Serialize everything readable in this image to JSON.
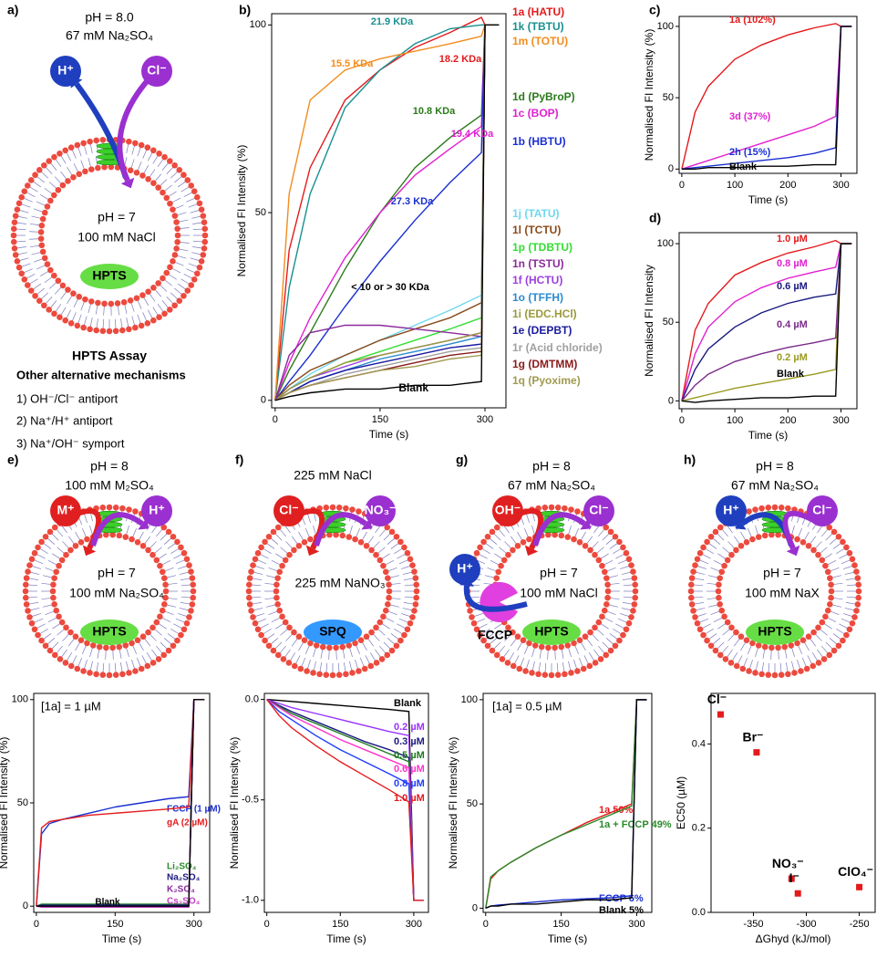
{
  "panels": {
    "a": {
      "label": "a)",
      "outside": [
        "pH = 8.0",
        "67 mM Na₂SO₄"
      ],
      "ions": [
        "H⁺",
        "Cl⁻"
      ],
      "inside": [
        "pH = 7",
        "100 mM NaCl"
      ],
      "dye": "HPTS",
      "caption": "HPTS Assay",
      "subtitle": "Other alternative mechanisms",
      "mechanisms": [
        "1) OH⁻/Cl⁻ antiport",
        "2) Na⁺/H⁺ antiport",
        "3) Na⁺/OH⁻ symport"
      ]
    },
    "e": {
      "label": "e)",
      "outside": [
        "pH = 8",
        "100 mM M₂SO₄"
      ],
      "ions": [
        "M⁺",
        "H⁺"
      ],
      "inside": [
        "pH = 7",
        "100 mM Na₂SO₄"
      ],
      "dye": "HPTS"
    },
    "f": {
      "label": "f)",
      "outside": [
        "225 mM NaCl"
      ],
      "ions": [
        "Cl⁻",
        "NO₃⁻"
      ],
      "inside": [
        "225 mM NaNO₃"
      ],
      "dye": "SPQ"
    },
    "g": {
      "label": "g)",
      "outside": [
        "pH = 8",
        "67 mM Na₂SO₄"
      ],
      "ions": [
        "OH⁻",
        "Cl⁻"
      ],
      "inside": [
        "pH = 7",
        "100 mM NaCl"
      ],
      "dye": "HPTS",
      "extra_ion": "H⁺",
      "carrier": "FCCP"
    },
    "h": {
      "label": "h)",
      "outside": [
        "pH = 8",
        "67 mM Na₂SO₄"
      ],
      "ions": [
        "H⁺",
        "Cl⁻"
      ],
      "inside": [
        "pH = 7",
        "100 mM NaX"
      ],
      "dye": "HPTS"
    }
  },
  "chart_data": [
    {
      "type": "line",
      "panel_label": "b)",
      "xlabel": "Time (s)",
      "ylabel": "Normalised FI Intensity (%)",
      "xlim": [
        -5,
        330
      ],
      "ylim": [
        -2,
        103
      ],
      "xticks": [
        0,
        150,
        300
      ],
      "yticks": [
        0,
        50,
        100
      ],
      "x": [
        0,
        20,
        50,
        100,
        150,
        200,
        250,
        295,
        300,
        320
      ],
      "series": [
        {
          "name": "1a (HATU)",
          "color": "#e41a1c",
          "values": [
            0,
            40,
            62,
            80,
            88,
            94,
            98,
            102,
            100,
            100
          ]
        },
        {
          "name": "1k (TBTU)",
          "color": "#1a9090",
          "values": [
            0,
            30,
            55,
            78,
            88,
            95,
            99,
            100,
            100,
            100
          ]
        },
        {
          "name": "1m (TOTU)",
          "color": "#f28c1e",
          "values": [
            0,
            55,
            80,
            88,
            91,
            93,
            95,
            97,
            100,
            100
          ]
        },
        {
          "name": "1d (PyBroP)",
          "color": "#2a7a1a",
          "values": [
            0,
            8,
            18,
            35,
            50,
            62,
            70,
            76,
            100,
            100
          ]
        },
        {
          "name": "1c (BOP)",
          "color": "#e020d0",
          "values": [
            0,
            10,
            22,
            38,
            50,
            60,
            67,
            73,
            100,
            100
          ]
        },
        {
          "name": "1b (HBTU)",
          "color": "#1a2fd0",
          "values": [
            0,
            5,
            12,
            25,
            37,
            48,
            58,
            66,
            100,
            100
          ]
        },
        {
          "name": "1j (TATU)",
          "color": "#70d8ee",
          "values": [
            0,
            3,
            7,
            12,
            16,
            20,
            24,
            28,
            100,
            100
          ]
        },
        {
          "name": "1l (TCTU)",
          "color": "#8a4a1a",
          "values": [
            0,
            4,
            8,
            12,
            16,
            19,
            22,
            26,
            100,
            100
          ]
        },
        {
          "name": "1p (TDBTU)",
          "color": "#33dd33",
          "values": [
            0,
            3,
            6,
            10,
            13,
            16,
            19,
            22,
            100,
            100
          ]
        },
        {
          "name": "1n (TSTU)",
          "color": "#8a2a9a",
          "values": [
            0,
            12,
            18,
            20,
            20,
            19,
            18,
            17,
            100,
            100
          ]
        },
        {
          "name": "1f (HCTU)",
          "color": "#9a40e0",
          "values": [
            0,
            3,
            6,
            9,
            12,
            14,
            16,
            18,
            100,
            100
          ]
        },
        {
          "name": "1o (TFFH)",
          "color": "#2a8ad0",
          "values": [
            0,
            2,
            5,
            8,
            11,
            13,
            15,
            17,
            100,
            100
          ]
        },
        {
          "name": "1i (EDC.HCl)",
          "color": "#9a9a3a",
          "values": [
            0,
            3,
            6,
            10,
            12,
            14,
            16,
            18,
            100,
            100
          ]
        },
        {
          "name": "1e (DEPBT)",
          "color": "#1a1aa0",
          "values": [
            0,
            2,
            5,
            8,
            10,
            12,
            14,
            15,
            100,
            100
          ]
        },
        {
          "name": "1r (Acid chloride)",
          "color": "#a0a0a0",
          "values": [
            0,
            2,
            4,
            7,
            9,
            11,
            13,
            14,
            100,
            100
          ]
        },
        {
          "name": "1g (DMTMM)",
          "color": "#8a1a1a",
          "values": [
            0,
            2,
            4,
            6,
            8,
            10,
            12,
            13,
            100,
            100
          ]
        },
        {
          "name": "1q (Pyoxime)",
          "color": "#a09a50",
          "values": [
            0,
            2,
            4,
            6,
            8,
            9,
            11,
            12,
            100,
            100
          ]
        },
        {
          "name": "Blank",
          "color": "#000000",
          "values": [
            0,
            1,
            2,
            3,
            3,
            4,
            4,
            5,
            100,
            100
          ]
        }
      ],
      "annotations": [
        {
          "text": "21.9 KDa",
          "color": "#1a9090"
        },
        {
          "text": "18.2 KDa",
          "color": "#e41a1c"
        },
        {
          "text": "15.5 KDa",
          "color": "#f28c1e"
        },
        {
          "text": "10.8 KDa",
          "color": "#2a7a1a"
        },
        {
          "text": "19.4 KDa",
          "color": "#e020d0"
        },
        {
          "text": "27.3 KDa",
          "color": "#1a2fd0"
        },
        {
          "text": "< 10 or > 30 KDa",
          "color": "#000000"
        }
      ]
    },
    {
      "type": "line",
      "panel_label": "c)",
      "xlabel": "Time (s)",
      "ylabel": "Normalised FI Intensity (%)",
      "xlim": [
        -5,
        330
      ],
      "ylim": [
        -3,
        107
      ],
      "xticks": [
        0,
        100,
        200,
        300
      ],
      "yticks": [
        0,
        50,
        100
      ],
      "x": [
        0,
        25,
        50,
        100,
        150,
        200,
        250,
        290,
        300,
        320
      ],
      "series": [
        {
          "name": "1a (102%)",
          "color": "#e41a1c",
          "values": [
            0,
            40,
            58,
            77,
            87,
            94,
            99,
            102,
            100,
            100
          ]
        },
        {
          "name": "3d (37%)",
          "color": "#e020d0",
          "values": [
            0,
            3,
            6,
            12,
            18,
            24,
            30,
            37,
            100,
            100
          ]
        },
        {
          "name": "2h (15%)",
          "color": "#1a2fd0",
          "values": [
            0,
            1,
            2,
            4,
            6,
            8,
            11,
            15,
            100,
            100
          ]
        },
        {
          "name": "Blank",
          "color": "#000000",
          "values": [
            0,
            0,
            1,
            1,
            2,
            2,
            3,
            3,
            100,
            100
          ]
        }
      ]
    },
    {
      "type": "line",
      "panel_label": "d)",
      "xlabel": "Time (s)",
      "ylabel": "Normalised FI Intensity",
      "xlim": [
        -5,
        330
      ],
      "ylim": [
        -5,
        107
      ],
      "xticks": [
        0,
        100,
        200,
        300
      ],
      "yticks": [
        0,
        50,
        100
      ],
      "x": [
        0,
        25,
        50,
        100,
        150,
        200,
        250,
        290,
        300,
        320
      ],
      "series": [
        {
          "name": "1.0 µM",
          "color": "#e41a1c",
          "values": [
            0,
            45,
            62,
            80,
            88,
            94,
            98,
            102,
            100,
            100
          ]
        },
        {
          "name": "0.8 µM",
          "color": "#e020d0",
          "values": [
            0,
            30,
            47,
            63,
            72,
            78,
            82,
            85,
            100,
            100
          ]
        },
        {
          "name": "0.6 µM",
          "color": "#1a1a80",
          "values": [
            0,
            20,
            33,
            47,
            56,
            62,
            66,
            68,
            100,
            100
          ]
        },
        {
          "name": "0.4 µM",
          "color": "#7a2a8a",
          "values": [
            0,
            10,
            17,
            25,
            30,
            34,
            37,
            40,
            100,
            100
          ]
        },
        {
          "name": "0.2 µM",
          "color": "#9a9a20",
          "values": [
            0,
            2,
            4,
            8,
            11,
            14,
            17,
            20,
            100,
            100
          ]
        },
        {
          "name": "Blank",
          "color": "#000000",
          "values": [
            0,
            -1,
            0,
            1,
            2,
            2,
            3,
            3,
            100,
            100
          ]
        }
      ]
    },
    {
      "type": "line",
      "xlabel": "Time (s)",
      "ylabel": "Normalised FI Intensity (%)",
      "xlim": [
        -5,
        330
      ],
      "ylim": [
        -3,
        103
      ],
      "xticks": [
        0,
        150,
        300
      ],
      "yticks": [
        0,
        50,
        100
      ],
      "x": [
        0,
        10,
        25,
        50,
        100,
        150,
        200,
        250,
        290,
        300,
        320
      ],
      "series": [
        {
          "name": "FCCP (1 µM)",
          "color": "#1a2fd0",
          "values": [
            0,
            35,
            40,
            42,
            45,
            48,
            50,
            52,
            53,
            100,
            100
          ]
        },
        {
          "name": "gA (2 µM)",
          "color": "#e41a1c",
          "values": [
            0,
            38,
            41,
            42,
            44,
            45,
            46,
            47,
            48,
            100,
            100
          ]
        },
        {
          "name": "Li₂SO₄",
          "color": "#2a8a2a",
          "values": [
            0,
            1,
            1,
            1,
            1,
            1,
            1,
            1,
            1,
            100,
            100
          ]
        },
        {
          "name": "Na₂SO₄",
          "color": "#1a1a80",
          "values": [
            0,
            0.5,
            0.5,
            0.5,
            0.5,
            0.5,
            0.5,
            0.5,
            0.5,
            100,
            100
          ]
        },
        {
          "name": "K₂SO₄",
          "color": "#8a2a9a",
          "values": [
            0,
            0,
            0,
            0,
            0,
            0,
            0,
            0,
            0,
            100,
            100
          ]
        },
        {
          "name": "Cs₂SO₄",
          "color": "#c040c0",
          "values": [
            0,
            -0.5,
            -0.5,
            -0.5,
            -0.5,
            -0.5,
            -0.5,
            -0.5,
            -0.5,
            100,
            100
          ]
        },
        {
          "name": "Blank",
          "color": "#000000",
          "values": [
            0,
            0,
            0,
            0,
            0,
            0,
            0,
            0,
            0,
            100,
            100
          ]
        }
      ],
      "annotations": [
        {
          "text": "[1a] = 1 µM",
          "color": "#000000"
        }
      ]
    },
    {
      "type": "line",
      "xlabel": "Time (s)",
      "ylabel": "Normalised FI Intensity (%)",
      "xlim": [
        -5,
        330
      ],
      "ylim": [
        -1.06,
        0.03
      ],
      "xticks": [
        0,
        150,
        300
      ],
      "yticks": [
        {
          "value": -1,
          "label": "-1.0"
        },
        -0.5,
        {
          "value": 0,
          "label": "0.0"
        }
      ],
      "x": [
        0,
        25,
        50,
        100,
        150,
        200,
        250,
        290,
        300,
        320
      ],
      "series": [
        {
          "name": "Blank",
          "color": "#000000",
          "values": [
            0,
            -0.005,
            -0.01,
            -0.02,
            -0.03,
            -0.04,
            -0.05,
            -0.06,
            -1.0,
            -1.0
          ]
        },
        {
          "name": "0.2 µM",
          "color": "#9933ff",
          "values": [
            0,
            -0.02,
            -0.04,
            -0.07,
            -0.1,
            -0.13,
            -0.16,
            -0.18,
            -1.0,
            -1.0
          ]
        },
        {
          "name": "0.3 µM",
          "color": "#1a1a80",
          "values": [
            0,
            -0.03,
            -0.06,
            -0.11,
            -0.16,
            -0.21,
            -0.25,
            -0.29,
            -1.0,
            -1.0
          ]
        },
        {
          "name": "0.5 µM",
          "color": "#1e7a1e",
          "values": [
            0,
            -0.035,
            -0.07,
            -0.12,
            -0.17,
            -0.22,
            -0.27,
            -0.31,
            -1.0,
            -1.0
          ]
        },
        {
          "name": "0.6 µM",
          "color": "#ff33cc",
          "values": [
            0,
            -0.04,
            -0.08,
            -0.14,
            -0.2,
            -0.25,
            -0.3,
            -0.34,
            -1.0,
            -1.0
          ]
        },
        {
          "name": "0.8 µM",
          "color": "#1e3cff",
          "values": [
            0,
            -0.06,
            -0.1,
            -0.18,
            -0.25,
            -0.31,
            -0.37,
            -0.42,
            -1.0,
            -1.0
          ]
        },
        {
          "name": "1.0 µM",
          "color": "#e41a1c",
          "values": [
            0,
            -0.08,
            -0.14,
            -0.23,
            -0.31,
            -0.38,
            -0.45,
            -0.51,
            -1.0,
            -1.0
          ]
        }
      ]
    },
    {
      "type": "line",
      "xlabel": "Time (s)",
      "ylabel": "Normalised FI Intensity (%)",
      "xlim": [
        -5,
        330
      ],
      "ylim": [
        -2,
        103
      ],
      "xticks": [
        0,
        150,
        300
      ],
      "yticks": [
        0,
        50,
        100
      ],
      "x": [
        0,
        10,
        25,
        50,
        100,
        150,
        200,
        250,
        290,
        300,
        320
      ],
      "series": [
        {
          "name": "1a 50%",
          "color": "#e41a1c",
          "values": [
            0,
            14,
            18,
            22,
            29,
            35,
            41,
            46,
            50,
            100,
            100
          ]
        },
        {
          "name": "1a + FCCP 49%",
          "color": "#2a8a2a",
          "values": [
            0,
            15,
            18,
            22,
            29,
            35,
            40,
            45,
            49,
            100,
            100
          ]
        },
        {
          "name": "FCCP 6%",
          "color": "#1a2fd0",
          "values": [
            0,
            1,
            1.5,
            2,
            3,
            4,
            4.5,
            5,
            6,
            100,
            100
          ]
        },
        {
          "name": "Blank 5%",
          "color": "#000000",
          "values": [
            0,
            1,
            1,
            2,
            2,
            3,
            4,
            4,
            5,
            100,
            100
          ]
        }
      ],
      "annotations": [
        {
          "text": "[1a] = 0.5 µM",
          "color": "#000000"
        }
      ]
    },
    {
      "type": "scatter",
      "xlabel": "ΔGhyd (kJ/mol)",
      "ylabel": "EC50 (µM)",
      "color": "#e41a1c",
      "xlim": [
        -390,
        -235
      ],
      "ylim": [
        0,
        0.52
      ],
      "xticks": [
        -350,
        -300,
        -250
      ],
      "yticks": [
        {
          "value": 0,
          "label": "0.0"
        },
        0.2,
        0.4
      ],
      "categories": [
        "Cl⁻",
        "Br⁻",
        "NO₃⁻",
        "I⁻",
        "ClO₄⁻"
      ],
      "x": [
        -381,
        -347,
        -314,
        -308,
        -250
      ],
      "values": [
        0.47,
        0.38,
        0.08,
        0.045,
        0.06
      ]
    }
  ]
}
